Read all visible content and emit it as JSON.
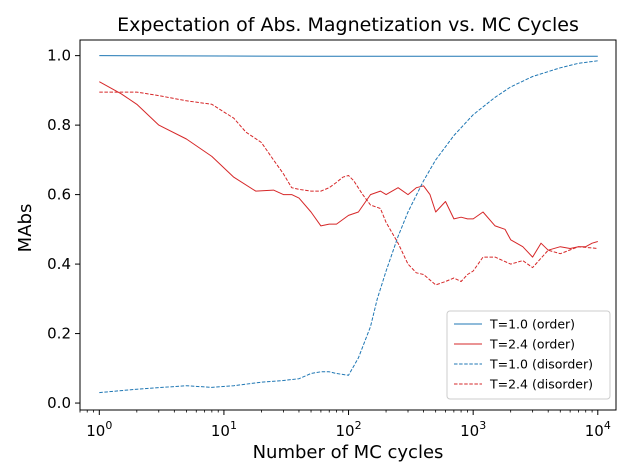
{
  "chart_data": {
    "type": "line",
    "title": "Expectation of Abs. Magnetization vs. MC Cycles",
    "xlabel": "Number of MC cycles",
    "ylabel": "MAbs",
    "xscale": "log",
    "xlim": [
      0.7,
      14000
    ],
    "ylim": [
      -0.02,
      1.045
    ],
    "xticks": [
      {
        "value": 1,
        "base": "10",
        "exp": "0"
      },
      {
        "value": 10,
        "base": "10",
        "exp": "1"
      },
      {
        "value": 100,
        "base": "10",
        "exp": "2"
      },
      {
        "value": 1000,
        "base": "10",
        "exp": "3"
      },
      {
        "value": 10000,
        "base": "10",
        "exp": "4"
      }
    ],
    "yticks": [
      "0.0",
      "0.2",
      "0.4",
      "0.6",
      "0.8",
      "1.0"
    ],
    "grid": false,
    "legend_position": "lower-right",
    "series": [
      {
        "name": "T=1.0 (order)",
        "color": "#1f77b4",
        "dash": "solid",
        "x": [
          1,
          10,
          50,
          100,
          1000,
          10000
        ],
        "y": [
          1.0,
          0.999,
          0.998,
          0.998,
          0.998,
          0.998
        ]
      },
      {
        "name": "T=2.4 (order)",
        "color": "#d62728",
        "dash": "solid",
        "x": [
          1,
          1.5,
          2,
          3,
          5,
          8,
          12,
          18,
          25,
          30,
          35,
          40,
          50,
          60,
          70,
          80,
          100,
          120,
          150,
          180,
          200,
          250,
          300,
          350,
          400,
          450,
          500,
          600,
          700,
          800,
          900,
          1000,
          1200,
          1500,
          1800,
          2000,
          2500,
          3000,
          3500,
          4000,
          5000,
          6000,
          7000,
          8000,
          9000,
          10000
        ],
        "y": [
          0.925,
          0.89,
          0.86,
          0.8,
          0.76,
          0.71,
          0.65,
          0.61,
          0.613,
          0.6,
          0.6,
          0.59,
          0.55,
          0.51,
          0.515,
          0.515,
          0.54,
          0.55,
          0.6,
          0.61,
          0.6,
          0.62,
          0.6,
          0.62,
          0.625,
          0.6,
          0.55,
          0.58,
          0.53,
          0.535,
          0.53,
          0.53,
          0.55,
          0.51,
          0.5,
          0.47,
          0.45,
          0.42,
          0.46,
          0.44,
          0.45,
          0.445,
          0.45,
          0.45,
          0.46,
          0.465
        ]
      },
      {
        "name": "T=1.0 (disorder)",
        "color": "#1f77b4",
        "dash": "dashed",
        "x": [
          1,
          2,
          5,
          8,
          12,
          20,
          30,
          40,
          50,
          60,
          70,
          80,
          100,
          120,
          150,
          170,
          200,
          250,
          300,
          400,
          500,
          700,
          1000,
          1500,
          2000,
          3000,
          5000,
          7000,
          10000
        ],
        "y": [
          0.03,
          0.04,
          0.05,
          0.045,
          0.05,
          0.06,
          0.065,
          0.07,
          0.085,
          0.09,
          0.09,
          0.085,
          0.08,
          0.13,
          0.22,
          0.3,
          0.38,
          0.48,
          0.55,
          0.64,
          0.7,
          0.77,
          0.83,
          0.88,
          0.91,
          0.94,
          0.965,
          0.978,
          0.985
        ]
      },
      {
        "name": "T=2.4 (disorder)",
        "color": "#d62728",
        "dash": "dashed",
        "x": [
          1,
          2,
          3,
          5,
          8,
          12,
          15,
          20,
          25,
          30,
          35,
          40,
          50,
          60,
          70,
          80,
          90,
          100,
          110,
          130,
          150,
          180,
          200,
          250,
          300,
          350,
          400,
          500,
          600,
          700,
          800,
          900,
          1000,
          1200,
          1500,
          2000,
          2500,
          3000,
          4000,
          5000,
          7000,
          10000
        ],
        "y": [
          0.895,
          0.895,
          0.885,
          0.87,
          0.86,
          0.82,
          0.78,
          0.75,
          0.7,
          0.66,
          0.62,
          0.615,
          0.61,
          0.61,
          0.62,
          0.635,
          0.65,
          0.655,
          0.64,
          0.6,
          0.57,
          0.56,
          0.52,
          0.46,
          0.4,
          0.375,
          0.37,
          0.34,
          0.35,
          0.36,
          0.35,
          0.37,
          0.38,
          0.42,
          0.42,
          0.4,
          0.41,
          0.39,
          0.44,
          0.43,
          0.45,
          0.445
        ]
      }
    ]
  }
}
